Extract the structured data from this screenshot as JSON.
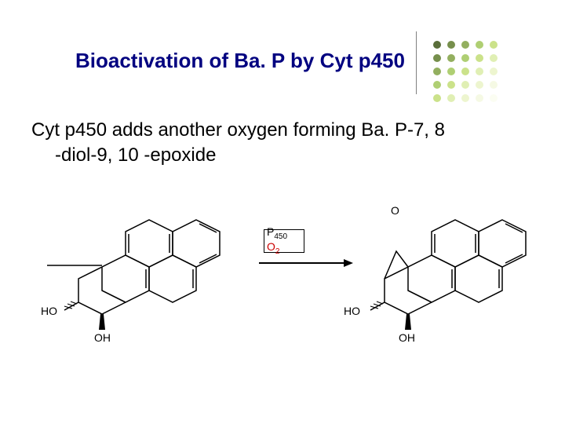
{
  "title": "Bioactivation of Ba. P by Cyt p450",
  "body_line1": "Cyt p450 adds another oxygen forming Ba. P-7, 8",
  "body_line2": "-diol-9, 10 -epoxide",
  "reagent_p450": "P",
  "reagent_p450_sub": "450",
  "reagent_o": "O",
  "reagent_o_sub": "2",
  "labels": {
    "ho_left": "HO",
    "oh_left": "OH",
    "ho_right": "HO",
    "oh_right": "OH",
    "epoxide_o": "O"
  },
  "colors": {
    "title": "#000080",
    "body": "#000000",
    "o2": "#cc0000",
    "line": "#000000",
    "dots": [
      "#5a6e3a",
      "#768f4c",
      "#93af5f",
      "#afcf73",
      "#cbe28a",
      "#768f4c",
      "#93af5f",
      "#afcf73",
      "#cbe28a",
      "#e0efb4",
      "#93af5f",
      "#afcf73",
      "#cbe28a",
      "#e0efb4",
      "#edf5cf",
      "#afcf73",
      "#cbe28a",
      "#e0efb4",
      "#edf5cf",
      "#f5f9e4",
      "#cbe28a",
      "#e0efb4",
      "#edf5cf",
      "#f5f9e4",
      "#fbfdf2"
    ]
  },
  "diagram": {
    "type": "chemical-reaction",
    "left_molecule": "BaP-7,8-diol (polycyclic aromatic with two OH)",
    "right_molecule": "BaP-7,8-diol-9,10-epoxide (polycyclic aromatic with two OH and epoxide ring)",
    "arrow": "rightarrow with boxed reagent P450 / O2"
  }
}
